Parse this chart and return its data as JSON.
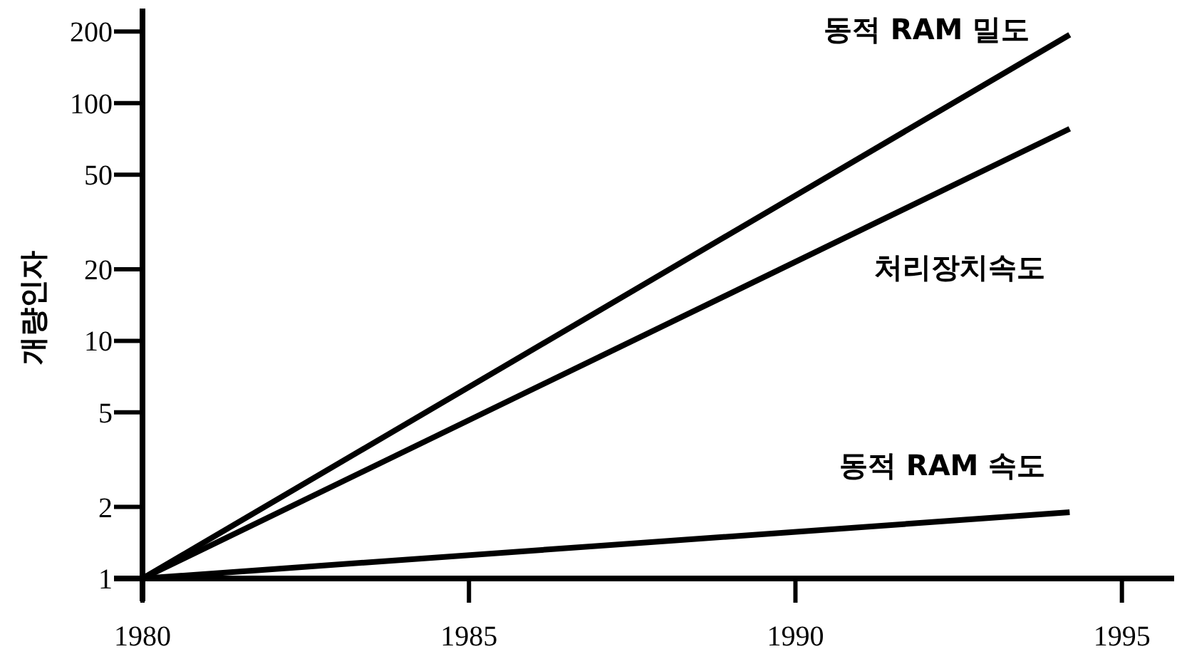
{
  "chart_data": {
    "type": "line",
    "ylabel": "개량인자",
    "log": "y",
    "xlim": [
      1980,
      1995.8
    ],
    "ylim": [
      1,
      250
    ],
    "xticks": [
      1980,
      1985,
      1990,
      1995
    ],
    "yticks": [
      1,
      2,
      5,
      10,
      20,
      50,
      100,
      200
    ],
    "grid": false,
    "marker": "none",
    "line_style": "solid",
    "x": [
      1980,
      1994.2
    ],
    "series": [
      {
        "name": "동적 RAM 밀도",
        "color": "#000000",
        "values": [
          1,
          194
        ]
      },
      {
        "name": "처리장치속도",
        "color": "#000000",
        "values": [
          1,
          78
        ]
      },
      {
        "name": "동적 RAM 속도",
        "color": "#000000",
        "values": [
          1,
          1.9
        ]
      }
    ]
  }
}
